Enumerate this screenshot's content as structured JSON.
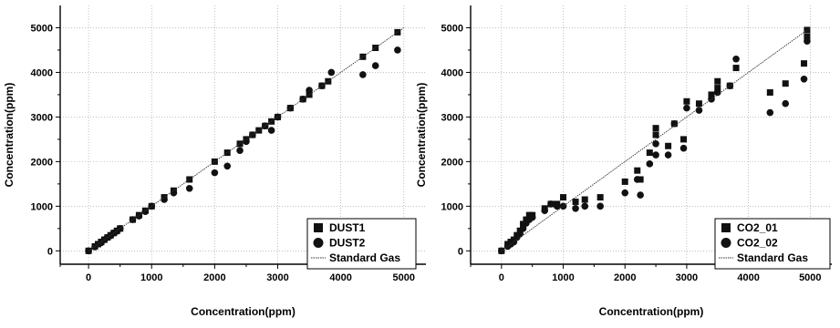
{
  "chart_data": [
    {
      "type": "scatter",
      "xlabel": "Concentration(ppm)",
      "ylabel": "Concentration(ppm)",
      "xlim": [
        -450,
        5350
      ],
      "ylim": [
        -300,
        5500
      ],
      "xticks": [
        0,
        1000,
        2000,
        3000,
        4000,
        5000
      ],
      "yticks": [
        0,
        1000,
        2000,
        3000,
        4000,
        5000
      ],
      "grid": true,
      "legend_position": "bottom-right",
      "series": [
        {
          "name": "DUST1",
          "marker": "square",
          "points": [
            [
              0,
              0
            ],
            [
              100,
              100
            ],
            [
              150,
              150
            ],
            [
              200,
              200
            ],
            [
              250,
              250
            ],
            [
              300,
              300
            ],
            [
              350,
              350
            ],
            [
              400,
              400
            ],
            [
              450,
              450
            ],
            [
              500,
              500
            ],
            [
              700,
              700
            ],
            [
              800,
              800
            ],
            [
              900,
              900
            ],
            [
              1000,
              1000
            ],
            [
              1200,
              1200
            ],
            [
              1350,
              1350
            ],
            [
              1600,
              1600
            ],
            [
              2000,
              2000
            ],
            [
              2200,
              2200
            ],
            [
              2400,
              2400
            ],
            [
              2500,
              2500
            ],
            [
              2600,
              2600
            ],
            [
              2700,
              2700
            ],
            [
              2800,
              2800
            ],
            [
              2900,
              2900
            ],
            [
              3000,
              3000
            ],
            [
              3200,
              3200
            ],
            [
              3400,
              3400
            ],
            [
              3500,
              3500
            ],
            [
              3700,
              3700
            ],
            [
              3800,
              3800
            ],
            [
              4350,
              4350
            ],
            [
              4550,
              4550
            ],
            [
              4900,
              4900
            ]
          ]
        },
        {
          "name": "DUST2",
          "marker": "circle",
          "points": [
            [
              0,
              0
            ],
            [
              100,
              90
            ],
            [
              200,
              180
            ],
            [
              250,
              250
            ],
            [
              300,
              300
            ],
            [
              350,
              340
            ],
            [
              400,
              400
            ],
            [
              450,
              440
            ],
            [
              500,
              500
            ],
            [
              700,
              700
            ],
            [
              800,
              780
            ],
            [
              900,
              880
            ],
            [
              1000,
              1000
            ],
            [
              1200,
              1150
            ],
            [
              1350,
              1300
            ],
            [
              1600,
              1400
            ],
            [
              2000,
              1750
            ],
            [
              2200,
              1900
            ],
            [
              2400,
              2250
            ],
            [
              2500,
              2450
            ],
            [
              2600,
              2600
            ],
            [
              2800,
              2800
            ],
            [
              2900,
              2700
            ],
            [
              3000,
              3000
            ],
            [
              3200,
              3200
            ],
            [
              3400,
              3400
            ],
            [
              3500,
              3600
            ],
            [
              3700,
              3700
            ],
            [
              3850,
              4000
            ],
            [
              4350,
              3950
            ],
            [
              4550,
              4150
            ],
            [
              4900,
              4500
            ]
          ]
        },
        {
          "name": "Standard Gas",
          "marker": "line",
          "points": [
            [
              0,
              0
            ],
            [
              5000,
              5000
            ]
          ]
        }
      ]
    },
    {
      "type": "scatter",
      "xlabel": "Concentration(ppm)",
      "ylabel": "Concentration(ppm)",
      "xlim": [
        -500,
        5350
      ],
      "ylim": [
        -300,
        5500
      ],
      "xticks": [
        0,
        1000,
        2000,
        3000,
        4000,
        5000
      ],
      "yticks": [
        0,
        1000,
        2000,
        3000,
        4000,
        5000
      ],
      "grid": true,
      "legend_position": "bottom-right",
      "series": [
        {
          "name": "CO2_01",
          "marker": "square",
          "points": [
            [
              0,
              0
            ],
            [
              100,
              150
            ],
            [
              150,
              200
            ],
            [
              200,
              250
            ],
            [
              250,
              350
            ],
            [
              300,
              450
            ],
            [
              350,
              600
            ],
            [
              400,
              700
            ],
            [
              450,
              800
            ],
            [
              500,
              800
            ],
            [
              700,
              950
            ],
            [
              800,
              1050
            ],
            [
              900,
              1050
            ],
            [
              1000,
              1200
            ],
            [
              1200,
              1100
            ],
            [
              1350,
              1150
            ],
            [
              1600,
              1200
            ],
            [
              2000,
              1550
            ],
            [
              2200,
              1800
            ],
            [
              2250,
              1600
            ],
            [
              2400,
              2200
            ],
            [
              2500,
              2600
            ],
            [
              2500,
              2750
            ],
            [
              2700,
              2350
            ],
            [
              2800,
              2850
            ],
            [
              2950,
              2500
            ],
            [
              3000,
              3350
            ],
            [
              3200,
              3300
            ],
            [
              3400,
              3500
            ],
            [
              3500,
              3650
            ],
            [
              3500,
              3800
            ],
            [
              3700,
              3700
            ],
            [
              3800,
              4100
            ],
            [
              4350,
              3550
            ],
            [
              4600,
              3750
            ],
            [
              4900,
              4200
            ],
            [
              4950,
              4800
            ],
            [
              4950,
              4950
            ]
          ]
        },
        {
          "name": "CO2_02",
          "marker": "circle",
          "points": [
            [
              0,
              0
            ],
            [
              100,
              100
            ],
            [
              150,
              150
            ],
            [
              200,
              200
            ],
            [
              250,
              300
            ],
            [
              300,
              380
            ],
            [
              350,
              500
            ],
            [
              400,
              620
            ],
            [
              450,
              700
            ],
            [
              500,
              750
            ],
            [
              700,
              900
            ],
            [
              800,
              1050
            ],
            [
              900,
              1000
            ],
            [
              1000,
              1000
            ],
            [
              1200,
              950
            ],
            [
              1350,
              1000
            ],
            [
              1600,
              1000
            ],
            [
              2000,
              1300
            ],
            [
              2200,
              1600
            ],
            [
              2250,
              1250
            ],
            [
              2400,
              1950
            ],
            [
              2500,
              2400
            ],
            [
              2500,
              2150
            ],
            [
              2700,
              2150
            ],
            [
              2800,
              2850
            ],
            [
              2950,
              2300
            ],
            [
              3000,
              3200
            ],
            [
              3200,
              3150
            ],
            [
              3400,
              3400
            ],
            [
              3500,
              3550
            ],
            [
              3700,
              3700
            ],
            [
              3800,
              4300
            ],
            [
              4350,
              3100
            ],
            [
              4600,
              3300
            ],
            [
              4900,
              3850
            ],
            [
              4950,
              4700
            ]
          ]
        },
        {
          "name": "Standard Gas",
          "marker": "line",
          "points": [
            [
              0,
              0
            ],
            [
              5000,
              5000
            ]
          ]
        }
      ]
    }
  ]
}
